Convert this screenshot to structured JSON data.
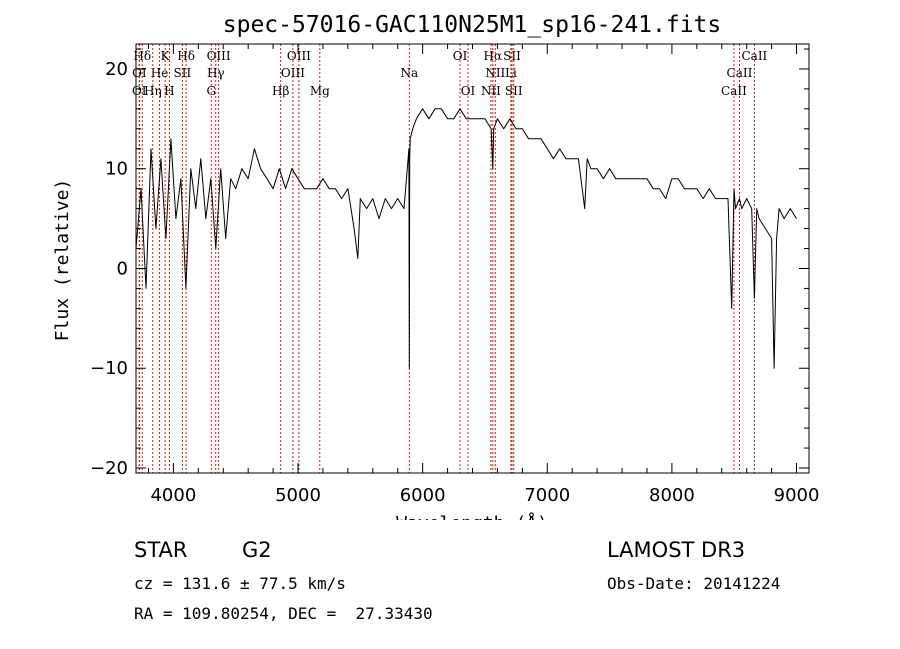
{
  "chart_data": {
    "type": "line",
    "title": "spec-57016-GAC110N25M1_sp16-241.fits",
    "xlabel": "Wavelength (Å)",
    "ylabel": "Flux (relative)",
    "xlim": [
      3700,
      9100
    ],
    "ylim": [
      -20.5,
      22.5
    ],
    "xticks": [
      4000,
      5000,
      6000,
      7000,
      8000,
      9000
    ],
    "xtick_labels": [
      "4000",
      "5000",
      "6000",
      "7000",
      "8000",
      "9000"
    ],
    "yticks": [
      -20,
      -10,
      0,
      10,
      20
    ],
    "ytick_labels": [
      "−20",
      "−10",
      "0",
      "10",
      "20"
    ],
    "line_color": "#000000",
    "marker_color": "#cc0000",
    "series": [
      {
        "name": "flux",
        "x": [
          3700,
          3740,
          3780,
          3820,
          3860,
          3900,
          3940,
          3980,
          4020,
          4060,
          4100,
          4140,
          4180,
          4220,
          4260,
          4300,
          4340,
          4380,
          4420,
          4460,
          4500,
          4550,
          4600,
          4650,
          4700,
          4750,
          4800,
          4850,
          4900,
          4950,
          5000,
          5050,
          5100,
          5150,
          5200,
          5250,
          5300,
          5350,
          5400,
          5450,
          5480,
          5500,
          5550,
          5600,
          5650,
          5700,
          5750,
          5800,
          5850,
          5890,
          5893,
          5896,
          5900,
          5920,
          5950,
          6000,
          6050,
          6100,
          6150,
          6200,
          6250,
          6300,
          6350,
          6400,
          6450,
          6500,
          6550,
          6563,
          6570,
          6600,
          6650,
          6700,
          6750,
          6800,
          6850,
          6900,
          6950,
          7000,
          7050,
          7100,
          7150,
          7200,
          7250,
          7280,
          7300,
          7320,
          7350,
          7400,
          7450,
          7500,
          7550,
          7600,
          7650,
          7700,
          7750,
          7800,
          7850,
          7900,
          7950,
          8000,
          8050,
          8100,
          8150,
          8200,
          8250,
          8300,
          8350,
          8400,
          8450,
          8480,
          8498,
          8510,
          8542,
          8560,
          8600,
          8640,
          8662,
          8680,
          8700,
          8750,
          8800,
          8820,
          8840,
          8860,
          8900,
          8950,
          9000
        ],
        "y": [
          2,
          8,
          -2,
          12,
          4,
          11,
          3,
          13,
          5,
          9,
          -2,
          10,
          6,
          11,
          5,
          9,
          2,
          10,
          3,
          9,
          8,
          10,
          9,
          12,
          10,
          9,
          8,
          10,
          8,
          10,
          9,
          8,
          8,
          8,
          9,
          8,
          8,
          7,
          8,
          4,
          1,
          7,
          6,
          7,
          5,
          7,
          6,
          7,
          6,
          12,
          -10,
          11,
          13,
          14,
          15,
          16,
          15,
          16,
          16,
          15,
          15,
          16,
          15,
          15,
          15,
          15,
          14,
          10,
          14,
          15,
          14,
          15,
          14,
          14,
          13,
          13,
          13,
          12,
          11,
          12,
          11,
          11,
          11,
          8,
          6,
          11,
          10,
          10,
          9,
          10,
          9,
          9,
          9,
          9,
          9,
          9,
          8,
          8,
          7,
          9,
          9,
          8,
          8,
          8,
          7,
          8,
          7,
          7,
          7,
          -4,
          8,
          6,
          7,
          6,
          7,
          6,
          -3,
          6,
          5,
          4,
          3,
          -10,
          3,
          6,
          5,
          6,
          5
        ]
      }
    ],
    "spectral_lines": [
      {
        "label": "Hδ",
        "x": 3750,
        "row": 1
      },
      {
        "label": "K",
        "x": 3934,
        "row": 1
      },
      {
        "label": "Hδ",
        "x": 4102,
        "row": 1
      },
      {
        "label": "OIII",
        "x": 4363,
        "row": 1
      },
      {
        "label": "OIII",
        "x": 5007,
        "row": 1
      },
      {
        "label": "OI",
        "x": 6300,
        "row": 1
      },
      {
        "label": "Hα",
        "x": 6563,
        "row": 1
      },
      {
        "label": "SII",
        "x": 6717,
        "row": 1
      },
      {
        "label": "CaII",
        "x": 8662,
        "row": 1
      },
      {
        "label": "OI",
        "x": 3727,
        "row": 2
      },
      {
        "label": "He",
        "x": 3889,
        "row": 2
      },
      {
        "label": "SII",
        "x": 4072,
        "row": 2
      },
      {
        "label": "Hγ",
        "x": 4340,
        "row": 2
      },
      {
        "label": "OIII",
        "x": 4959,
        "row": 2
      },
      {
        "label": "Na",
        "x": 5893,
        "row": 2
      },
      {
        "label": "NII",
        "x": 6583,
        "row": 2
      },
      {
        "label": "Li",
        "x": 6708,
        "row": 2
      },
      {
        "label": "CaII",
        "x": 8542,
        "row": 2
      },
      {
        "label": "OI",
        "x": 3726,
        "row": 3
      },
      {
        "label": "Hη",
        "x": 3835,
        "row": 3
      },
      {
        "label": "H",
        "x": 3968,
        "row": 3
      },
      {
        "label": "G",
        "x": 4304,
        "row": 3
      },
      {
        "label": "Hβ",
        "x": 4861,
        "row": 3
      },
      {
        "label": "Mg",
        "x": 5175,
        "row": 3
      },
      {
        "label": "OI",
        "x": 6364,
        "row": 3
      },
      {
        "label": "NII",
        "x": 6548,
        "row": 3
      },
      {
        "label": "SII",
        "x": 6731,
        "row": 3
      },
      {
        "label": "CaII",
        "x": 8498,
        "row": 3
      }
    ]
  },
  "info": {
    "class": "STAR",
    "subclass": "G2",
    "survey": "LAMOST DR3",
    "cz": "cz = 131.6 ± 77.5 km/s",
    "obs_date": "Obs-Date: 20141224",
    "coords": "RA = 109.80254, DEC =  27.33430"
  }
}
